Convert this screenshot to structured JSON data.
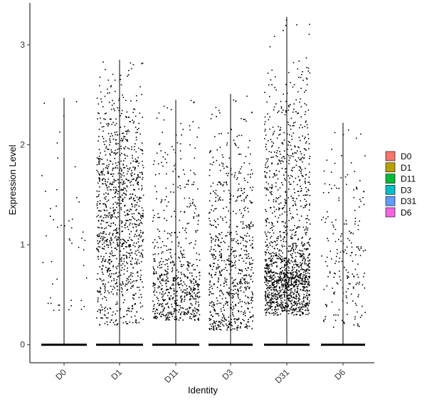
{
  "chart_data": {
    "type": "violin-jitter",
    "xlabel": "Identity",
    "ylabel": "Expression Level",
    "categories": [
      "D0",
      "D1",
      "D11",
      "D3",
      "D31",
      "D6"
    ],
    "ylim": [
      -0.18,
      3.42
    ],
    "yticks": [
      0,
      1,
      2,
      3
    ],
    "series": [
      {
        "name": "D0",
        "color": "#F8766D",
        "max": 2.47,
        "nonzero_points": 50,
        "nonzero_range": [
          0.3,
          2.47
        ]
      },
      {
        "name": "D1",
        "color": "#B79F00",
        "max": 2.85,
        "nonzero_points": 1100,
        "nonzero_range": [
          0.2,
          2.85
        ]
      },
      {
        "name": "D11",
        "color": "#00BA38",
        "max": 2.45,
        "nonzero_points": 650,
        "nonzero_range": [
          0.25,
          2.45
        ]
      },
      {
        "name": "D3",
        "color": "#00BFC4",
        "max": 2.51,
        "nonzero_points": 750,
        "nonzero_range": [
          0.15,
          2.51
        ]
      },
      {
        "name": "D31",
        "color": "#619CFF",
        "max": 3.28,
        "nonzero_points": 1500,
        "nonzero_range": [
          0.3,
          3.28
        ]
      },
      {
        "name": "D6",
        "color": "#F564E3",
        "max": 2.22,
        "nonzero_points": 200,
        "nonzero_range": [
          0.18,
          2.22
        ]
      }
    ],
    "legend": {
      "position": "right",
      "entries": [
        "D0",
        "D1",
        "D11",
        "D3",
        "D31",
        "D6"
      ]
    },
    "grid": false
  }
}
